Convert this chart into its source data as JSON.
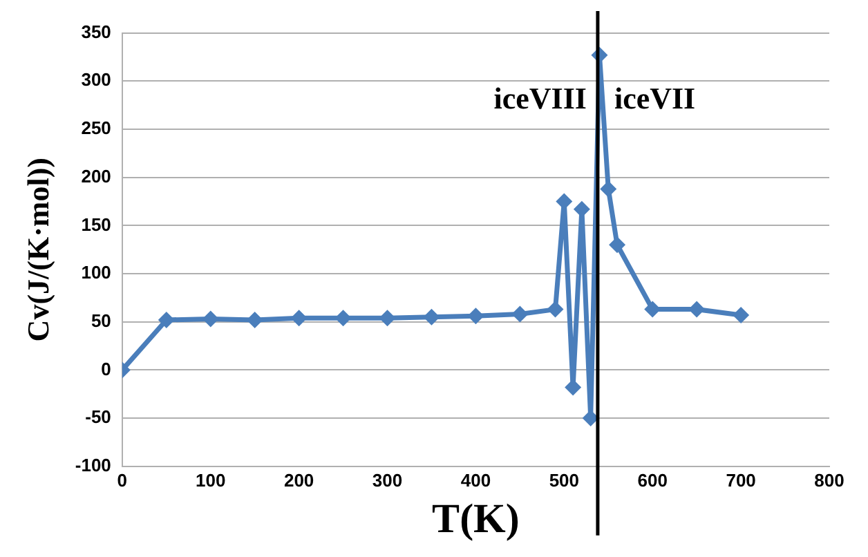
{
  "chart_data": {
    "type": "line",
    "xlabel": "T(K)",
    "ylabel": "Cv(J/(K·mol))",
    "x": [
      0,
      50,
      100,
      150,
      200,
      250,
      300,
      350,
      400,
      450,
      490,
      500,
      510,
      520,
      530,
      540,
      550,
      560,
      600,
      650,
      700
    ],
    "series": [
      {
        "color": "#4a7ebb",
        "values": [
          0,
          52,
          53,
          52,
          54,
          54,
          54,
          55,
          56,
          58,
          63,
          175,
          -18,
          167,
          -50,
          327,
          188,
          130,
          63,
          63,
          57
        ]
      }
    ],
    "xlim": [
      0,
      800
    ],
    "xticks": [
      0,
      100,
      200,
      300,
      400,
      500,
      600,
      700,
      800
    ],
    "ylim": [
      -100,
      350
    ],
    "yticks": [
      -100,
      -50,
      0,
      50,
      100,
      150,
      200,
      250,
      300,
      350
    ],
    "grid": "y",
    "legend": false,
    "marker": "diamond",
    "line_style": "solid",
    "ref_lines": [
      {
        "axis": "x",
        "value": 538,
        "color": "#000000"
      }
    ],
    "annotations": [
      "iceVIII",
      "iceVII"
    ]
  }
}
